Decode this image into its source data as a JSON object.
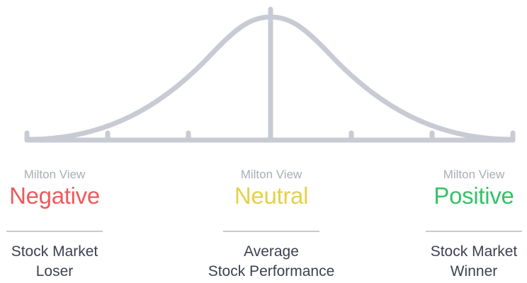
{
  "colors": {
    "curve": "#c8cbd3",
    "negative": "#f0595b",
    "neutral": "#e5d14a",
    "positive": "#35c267",
    "prefix": "#a9adb5",
    "description": "#3d4150"
  },
  "columns": [
    {
      "prefix": "Milton View",
      "view": "Negative",
      "description_line1": "Stock Market",
      "description_line2": "Loser"
    },
    {
      "prefix": "Milton View",
      "view": "Neutral",
      "description_line1": "Average",
      "description_line2": "Stock Performance"
    },
    {
      "prefix": "Milton View",
      "view": "Positive",
      "description_line1": "Stock Market",
      "description_line2": "Winner"
    }
  ]
}
